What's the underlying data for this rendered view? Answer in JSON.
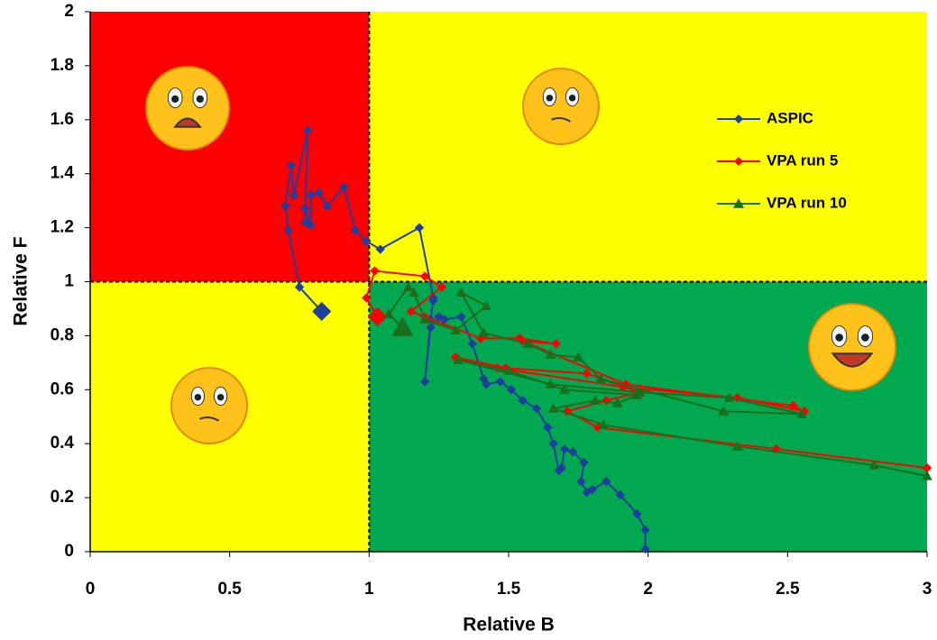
{
  "chart_data": {
    "type": "line",
    "x_label": "Relative B",
    "y_label": "Relative F",
    "xlim": [
      0,
      3
    ],
    "ylim": [
      0,
      2
    ],
    "xticks": [
      0,
      0.5,
      1,
      1.5,
      2,
      2.5,
      3
    ],
    "yticks": [
      0,
      0.2,
      0.4,
      0.6,
      0.8,
      1,
      1.2,
      1.4,
      1.6,
      1.8,
      2
    ],
    "reference_lines": {
      "x": 1,
      "y": 1
    },
    "quadrant_colors": {
      "top_left": "#ff0000",
      "top_right": "#ffff00",
      "bottom_left": "#ffff00",
      "bottom_right": "#00a850"
    },
    "legend_position": "upper right",
    "series": [
      {
        "name": "ASPIC",
        "color": "#1f3f9e",
        "marker": "diamond",
        "x": [
          1.99,
          1.99,
          1.96,
          1.9,
          1.85,
          1.8,
          1.78,
          1.76,
          1.77,
          1.73,
          1.7,
          1.69,
          1.68,
          1.66,
          1.64,
          1.6,
          1.55,
          1.51,
          1.47,
          1.42,
          1.41,
          1.37,
          1.33,
          1.27,
          1.25,
          1.22,
          1.2,
          1.22,
          1.23,
          1.23,
          1.18,
          1.04,
          0.99,
          0.95,
          0.91,
          0.85,
          0.82,
          0.79,
          0.79,
          0.77,
          0.77,
          0.78,
          0.73,
          0.72,
          0.7,
          0.71,
          0.75,
          0.83
        ],
        "values": [
          0.01,
          0.08,
          0.14,
          0.21,
          0.26,
          0.23,
          0.22,
          0.26,
          0.33,
          0.37,
          0.38,
          0.31,
          0.3,
          0.4,
          0.46,
          0.53,
          0.56,
          0.6,
          0.63,
          0.62,
          0.64,
          0.77,
          0.87,
          0.86,
          0.87,
          0.83,
          0.63,
          0.86,
          0.93,
          0.94,
          1.2,
          1.12,
          1.15,
          1.19,
          1.35,
          1.28,
          1.33,
          1.32,
          1.21,
          1.27,
          1.22,
          1.56,
          1.32,
          1.43,
          1.28,
          1.19,
          0.98,
          0.89
        ]
      },
      {
        "name": "VPA run 5",
        "color": "#ff0000",
        "marker": "diamond",
        "x": [
          3.0,
          2.46,
          1.82,
          1.71,
          1.85,
          1.97,
          1.78,
          1.49,
          1.31,
          1.46,
          1.91,
          2.32,
          2.56,
          2.52,
          1.92,
          1.55,
          1.67,
          1.54,
          1.4,
          1.2,
          1.15,
          1.26,
          1.2,
          1.02,
          0.99,
          1.03
        ],
        "values": [
          0.31,
          0.38,
          0.46,
          0.52,
          0.56,
          0.59,
          0.66,
          0.68,
          0.72,
          0.68,
          0.61,
          0.57,
          0.52,
          0.54,
          0.62,
          0.78,
          0.77,
          0.79,
          0.79,
          0.87,
          0.89,
          0.98,
          1.02,
          1.04,
          0.94,
          0.87
        ]
      },
      {
        "name": "VPA run 10",
        "color": "#1b6e1b",
        "marker": "triangle",
        "x": [
          3.0,
          2.81,
          2.32,
          1.84,
          1.66,
          1.81,
          1.89,
          1.96,
          1.7,
          1.5,
          1.32,
          1.65,
          1.97,
          2.29,
          2.55,
          2.27,
          1.83,
          1.75,
          1.65,
          1.57,
          1.41,
          1.33,
          1.42,
          1.31,
          1.2,
          1.16,
          1.14,
          1.07,
          1.12
        ],
        "values": [
          0.28,
          0.32,
          0.39,
          0.47,
          0.53,
          0.56,
          0.55,
          0.58,
          0.6,
          0.67,
          0.71,
          0.62,
          0.59,
          0.57,
          0.51,
          0.52,
          0.64,
          0.72,
          0.73,
          0.77,
          0.81,
          0.96,
          0.91,
          0.82,
          0.86,
          0.96,
          0.98,
          0.88,
          0.83
        ]
      }
    ]
  }
}
